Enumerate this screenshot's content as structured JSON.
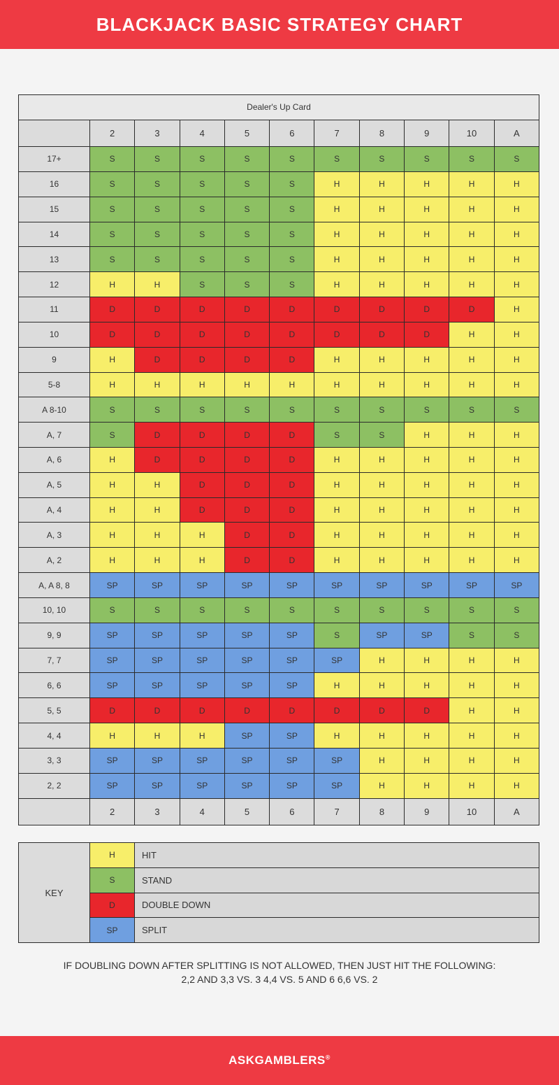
{
  "title": "BLACKJACK BASIC STRATEGY CHART",
  "table": {
    "caption": "Dealer's Up Card",
    "dealer_cards": [
      "2",
      "3",
      "4",
      "5",
      "6",
      "7",
      "8",
      "9",
      "10",
      "A"
    ],
    "rows": [
      {
        "label": "17+",
        "cells": [
          "S",
          "S",
          "S",
          "S",
          "S",
          "S",
          "S",
          "S",
          "S",
          "S"
        ]
      },
      {
        "label": "16",
        "cells": [
          "S",
          "S",
          "S",
          "S",
          "S",
          "H",
          "H",
          "H",
          "H",
          "H"
        ]
      },
      {
        "label": "15",
        "cells": [
          "S",
          "S",
          "S",
          "S",
          "S",
          "H",
          "H",
          "H",
          "H",
          "H"
        ]
      },
      {
        "label": "14",
        "cells": [
          "S",
          "S",
          "S",
          "S",
          "S",
          "H",
          "H",
          "H",
          "H",
          "H"
        ]
      },
      {
        "label": "13",
        "cells": [
          "S",
          "S",
          "S",
          "S",
          "S",
          "H",
          "H",
          "H",
          "H",
          "H"
        ]
      },
      {
        "label": "12",
        "cells": [
          "H",
          "H",
          "S",
          "S",
          "S",
          "H",
          "H",
          "H",
          "H",
          "H"
        ]
      },
      {
        "label": "11",
        "cells": [
          "D",
          "D",
          "D",
          "D",
          "D",
          "D",
          "D",
          "D",
          "D",
          "H"
        ]
      },
      {
        "label": "10",
        "cells": [
          "D",
          "D",
          "D",
          "D",
          "D",
          "D",
          "D",
          "D",
          "H",
          "H"
        ]
      },
      {
        "label": "9",
        "cells": [
          "H",
          "D",
          "D",
          "D",
          "D",
          "H",
          "H",
          "H",
          "H",
          "H"
        ]
      },
      {
        "label": "5-8",
        "cells": [
          "H",
          "H",
          "H",
          "H",
          "H",
          "H",
          "H",
          "H",
          "H",
          "H"
        ]
      },
      {
        "label": "A 8-10",
        "cells": [
          "S",
          "S",
          "S",
          "S",
          "S",
          "S",
          "S",
          "S",
          "S",
          "S"
        ]
      },
      {
        "label": "A, 7",
        "cells": [
          "S",
          "D",
          "D",
          "D",
          "D",
          "S",
          "S",
          "H",
          "H",
          "H"
        ]
      },
      {
        "label": "A, 6",
        "cells": [
          "H",
          "D",
          "D",
          "D",
          "D",
          "H",
          "H",
          "H",
          "H",
          "H"
        ]
      },
      {
        "label": "A, 5",
        "cells": [
          "H",
          "H",
          "D",
          "D",
          "D",
          "H",
          "H",
          "H",
          "H",
          "H"
        ]
      },
      {
        "label": "A, 4",
        "cells": [
          "H",
          "H",
          "D",
          "D",
          "D",
          "H",
          "H",
          "H",
          "H",
          "H"
        ]
      },
      {
        "label": "A, 3",
        "cells": [
          "H",
          "H",
          "H",
          "D",
          "D",
          "H",
          "H",
          "H",
          "H",
          "H"
        ]
      },
      {
        "label": "A, 2",
        "cells": [
          "H",
          "H",
          "H",
          "D",
          "D",
          "H",
          "H",
          "H",
          "H",
          "H"
        ]
      },
      {
        "label": "A, A  8, 8",
        "cells": [
          "SP",
          "SP",
          "SP",
          "SP",
          "SP",
          "SP",
          "SP",
          "SP",
          "SP",
          "SP"
        ]
      },
      {
        "label": "10, 10",
        "cells": [
          "S",
          "S",
          "S",
          "S",
          "S",
          "S",
          "S",
          "S",
          "S",
          "S"
        ]
      },
      {
        "label": "9, 9",
        "cells": [
          "SP",
          "SP",
          "SP",
          "SP",
          "SP",
          "S",
          "SP",
          "SP",
          "S",
          "S"
        ]
      },
      {
        "label": "7, 7",
        "cells": [
          "SP",
          "SP",
          "SP",
          "SP",
          "SP",
          "SP",
          "H",
          "H",
          "H",
          "H"
        ]
      },
      {
        "label": "6, 6",
        "cells": [
          "SP",
          "SP",
          "SP",
          "SP",
          "SP",
          "H",
          "H",
          "H",
          "H",
          "H"
        ]
      },
      {
        "label": "5, 5",
        "cells": [
          "D",
          "D",
          "D",
          "D",
          "D",
          "D",
          "D",
          "D",
          "H",
          "H"
        ]
      },
      {
        "label": "4, 4",
        "cells": [
          "H",
          "H",
          "H",
          "SP",
          "SP",
          "H",
          "H",
          "H",
          "H",
          "H"
        ]
      },
      {
        "label": "3, 3",
        "cells": [
          "SP",
          "SP",
          "SP",
          "SP",
          "SP",
          "SP",
          "H",
          "H",
          "H",
          "H"
        ]
      },
      {
        "label": "2, 2",
        "cells": [
          "SP",
          "SP",
          "SP",
          "SP",
          "SP",
          "SP",
          "H",
          "H",
          "H",
          "H"
        ]
      }
    ]
  },
  "key": {
    "label": "KEY",
    "items": [
      {
        "code": "H",
        "text": "HIT"
      },
      {
        "code": "S",
        "text": "STAND"
      },
      {
        "code": "D",
        "text": "DOUBLE DOWN"
      },
      {
        "code": "SP",
        "text": "SPLIT"
      }
    ]
  },
  "colors": {
    "H": "#f7ee6a",
    "S": "#8dc063",
    "D": "#e8262c",
    "SP": "#6f9fe0",
    "banner": "#ee3a43"
  },
  "footnote": {
    "line1": "IF DOUBLING DOWN AFTER SPLITTING IS NOT ALLOWED, THEN JUST HIT THE FOLLOWING:",
    "line2": "2,2 AND 3,3 VS. 3  4,4 VS. 5 AND 6   6,6 VS. 2"
  },
  "brand": "ASKGAMBLERS",
  "brand_mark": "®"
}
